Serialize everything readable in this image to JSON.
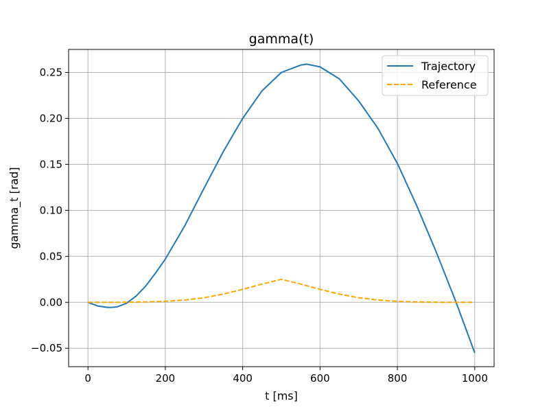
{
  "chart_data": {
    "type": "line",
    "title": "gamma(t)",
    "xlabel": "t [ms]",
    "ylabel": "gamma_t [rad]",
    "xlim": [
      -50,
      1050
    ],
    "ylim": [
      -0.07,
      0.275
    ],
    "xticks": [
      0,
      200,
      400,
      600,
      800,
      1000
    ],
    "xtick_labels": [
      "0",
      "200",
      "400",
      "600",
      "800",
      "1000"
    ],
    "yticks": [
      -0.05,
      0.0,
      0.05,
      0.1,
      0.15,
      0.2,
      0.25
    ],
    "ytick_labels": [
      "−0.05",
      "0.00",
      "0.05",
      "0.10",
      "0.15",
      "0.20",
      "0.25"
    ],
    "grid": true,
    "legend_position": "top-right",
    "series": [
      {
        "name": "Trajectory",
        "color": "#1f77b4",
        "style": "solid",
        "x": [
          0,
          25,
          50,
          60,
          75,
          100,
          125,
          150,
          175,
          200,
          250,
          300,
          350,
          400,
          450,
          500,
          550,
          565,
          600,
          650,
          700,
          750,
          800,
          850,
          900,
          950,
          1000
        ],
        "y": [
          0.0,
          -0.004,
          -0.0055,
          -0.0055,
          -0.005,
          -0.001,
          0.007,
          0.018,
          0.032,
          0.047,
          0.083,
          0.124,
          0.164,
          0.2,
          0.23,
          0.25,
          0.258,
          0.259,
          0.256,
          0.243,
          0.219,
          0.189,
          0.151,
          0.105,
          0.055,
          0.002,
          -0.055
        ]
      },
      {
        "name": "Reference",
        "color": "#ffa500",
        "style": "dashed",
        "x": [
          0,
          50,
          100,
          150,
          200,
          250,
          300,
          350,
          400,
          450,
          500,
          550,
          600,
          650,
          700,
          750,
          800,
          850,
          900,
          950,
          1000
        ],
        "y": [
          0.0,
          0.0,
          0.0001,
          0.0004,
          0.0011,
          0.0025,
          0.005,
          0.0089,
          0.0141,
          0.0198,
          0.025,
          0.0198,
          0.0141,
          0.0089,
          0.005,
          0.0025,
          0.0011,
          0.0004,
          0.0001,
          0.0,
          0.0
        ]
      }
    ]
  }
}
